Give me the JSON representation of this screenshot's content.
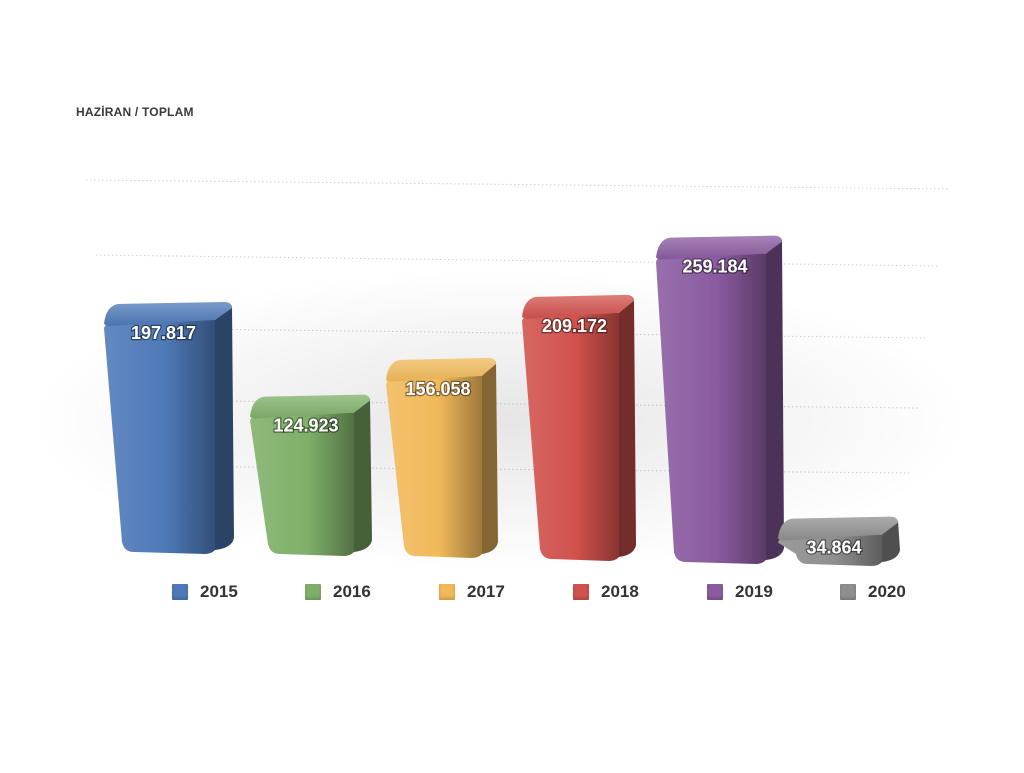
{
  "chart_data": {
    "type": "bar",
    "title": "HAZİRAN / TOPLAM",
    "categories": [
      "2015",
      "2016",
      "2017",
      "2018",
      "2019",
      "2020"
    ],
    "values": [
      197817,
      124923,
      156058,
      209172,
      259184,
      34864
    ],
    "data_labels": [
      "197.817",
      "124.923",
      "156.058",
      "209.172",
      "259.184",
      "34.864"
    ],
    "colors": [
      "#4e79b8",
      "#7fb069",
      "#f1b95a",
      "#d1524d",
      "#8a5ba0",
      "#8f8f8f"
    ],
    "ylim": [
      0,
      320000
    ],
    "grid": true,
    "legend": {
      "position": "bottom",
      "entries": [
        "2015",
        "2016",
        "2017",
        "2018",
        "2019",
        "2020"
      ]
    }
  }
}
